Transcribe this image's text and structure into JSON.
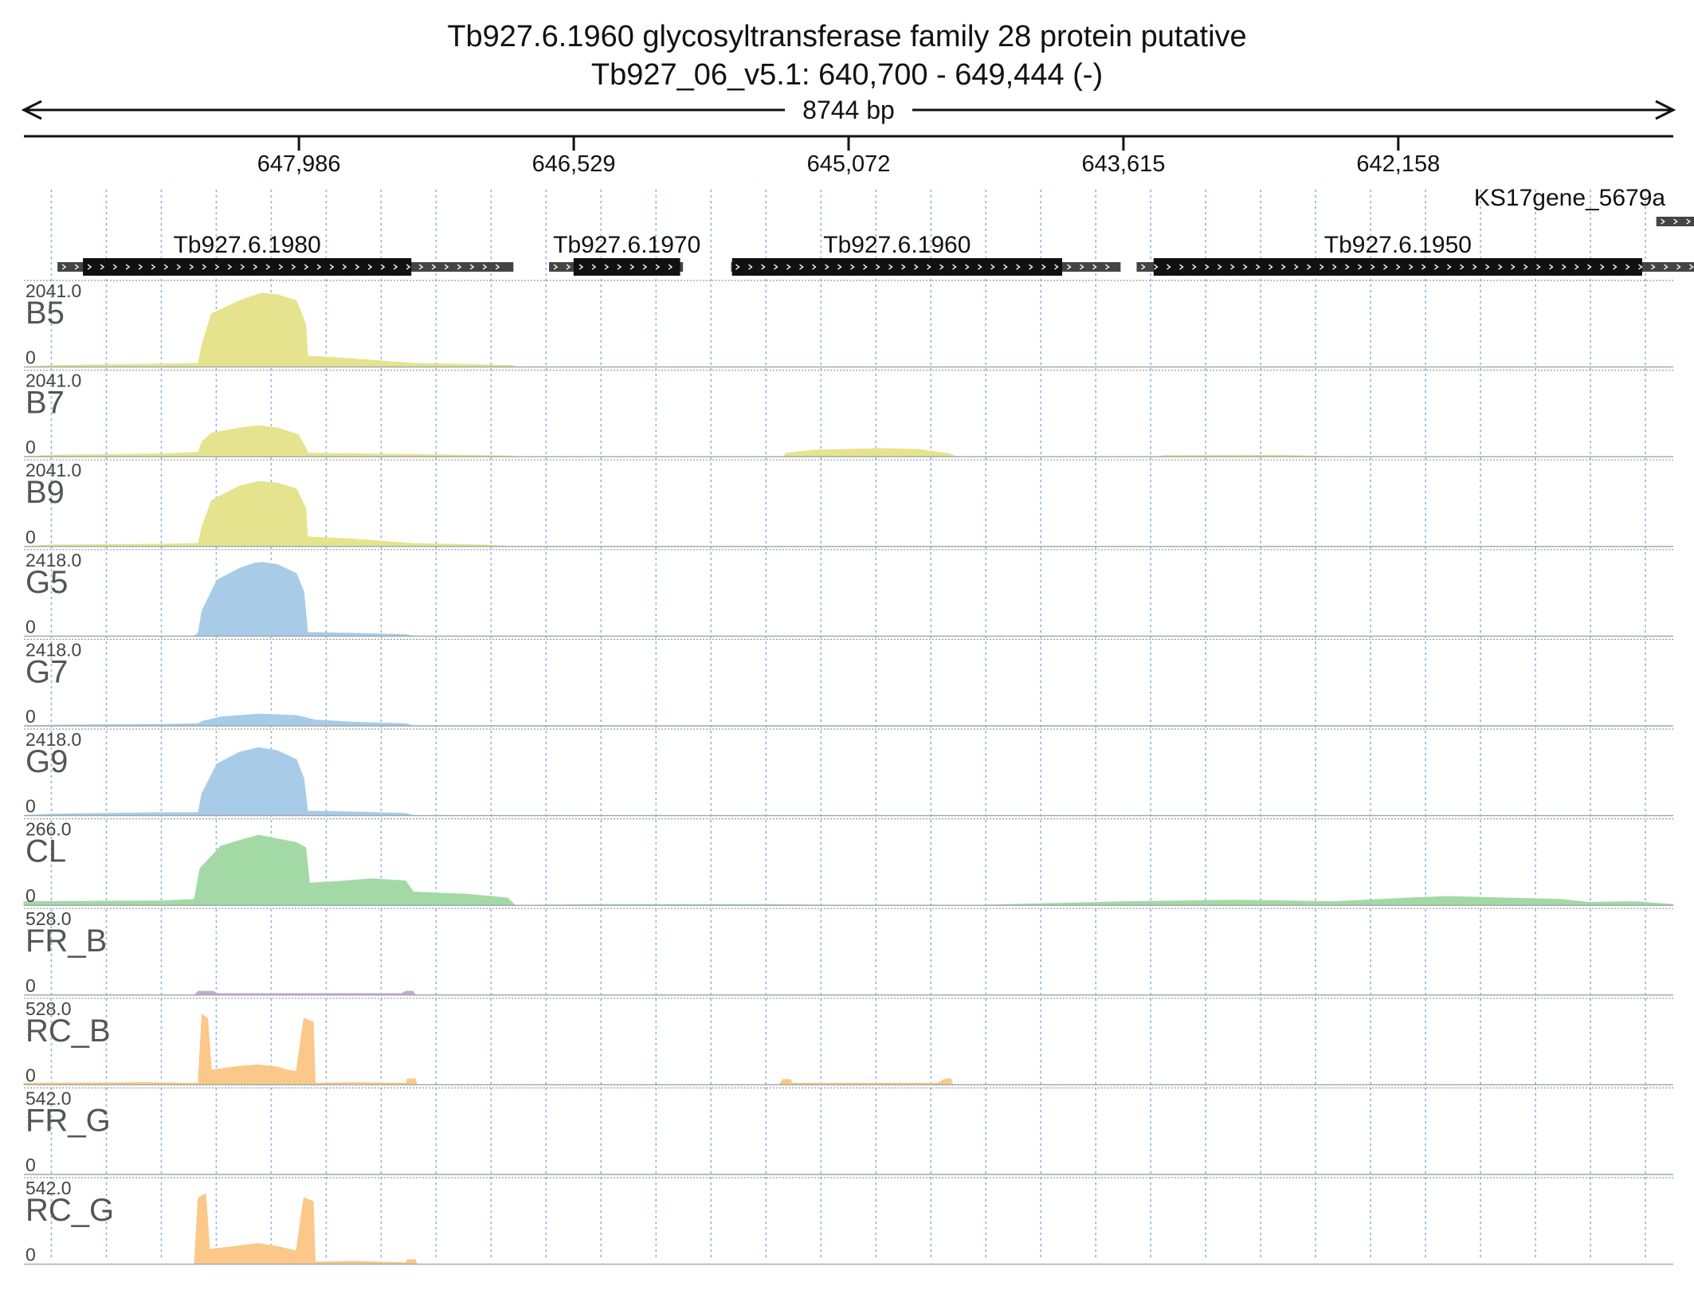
{
  "title": {
    "line1": "Tb927.6.1960  glycosyltransferase family 28 protein  putative",
    "line2": "Tb927_06_v5.1: 640,700 - 649,444 (-)"
  },
  "region": {
    "chrom": "Tb927_06_v5.1",
    "start": 640700,
    "end": 649444,
    "strand": "-",
    "span_label": "8744 bp"
  },
  "ruler": {
    "ticks": [
      {
        "pos": 647986,
        "label": "647,986"
      },
      {
        "pos": 646529,
        "label": "646,529"
      },
      {
        "pos": 645072,
        "label": "645,072"
      },
      {
        "pos": 643615,
        "label": "643,615"
      },
      {
        "pos": 642158,
        "label": "642,158"
      }
    ]
  },
  "genes": [
    {
      "name": "Tb927.6.1980",
      "start": 649266,
      "end": 646849,
      "cds_start": 649131,
      "cds_end": 647390,
      "row": 1
    },
    {
      "name": "Tb927.6.1970",
      "start": 646660,
      "end": 645950,
      "cds_start": 646530,
      "cds_end": 645965,
      "row": 1
    },
    {
      "name": "Tb927.6.1960",
      "start": 645695,
      "end": 643630,
      "cds_start": 645690,
      "cds_end": 643940,
      "row": 1
    },
    {
      "name": "Tb927.6.1950",
      "start": 643545,
      "end": 640230,
      "cds_start": 643455,
      "cds_end": 640865,
      "row": 1
    },
    {
      "name": "KS17gene_5679a",
      "start": 640790,
      "end": 640255,
      "cds_start": 640790,
      "cds_end": 640255,
      "row": 0
    }
  ],
  "tracks": [
    {
      "label": "B5",
      "max": "2041.0",
      "min": "0",
      "color": "#e6e38e",
      "profile": [
        [
          649444,
          0.0
        ],
        [
          649300,
          0.02
        ],
        [
          648700,
          0.04
        ],
        [
          648520,
          0.05
        ],
        [
          648500,
          0.3
        ],
        [
          648450,
          0.72
        ],
        [
          648300,
          0.9
        ],
        [
          648220,
          0.97
        ],
        [
          648180,
          1.0
        ],
        [
          648100,
          0.98
        ],
        [
          648000,
          0.9
        ],
        [
          647950,
          0.58
        ],
        [
          647940,
          0.15
        ],
        [
          647700,
          0.11
        ],
        [
          647380,
          0.05
        ],
        [
          647000,
          0.03
        ],
        [
          646850,
          0.02
        ],
        [
          646840,
          0.0
        ],
        [
          640700,
          0.0
        ]
      ]
    },
    {
      "label": "B7",
      "max": "2041.0",
      "min": "0",
      "color": "#e6e38e",
      "profile": [
        [
          649444,
          0.0
        ],
        [
          649300,
          0.02
        ],
        [
          648700,
          0.04
        ],
        [
          648520,
          0.06
        ],
        [
          648500,
          0.2
        ],
        [
          648450,
          0.32
        ],
        [
          648300,
          0.39
        ],
        [
          648200,
          0.42
        ],
        [
          648100,
          0.39
        ],
        [
          647990,
          0.3
        ],
        [
          647950,
          0.12
        ],
        [
          647940,
          0.05
        ],
        [
          647700,
          0.04
        ],
        [
          647380,
          0.03
        ],
        [
          647000,
          0.015
        ],
        [
          646850,
          0.01
        ],
        [
          646850,
          0.0
        ],
        [
          645420,
          0.0
        ],
        [
          645400,
          0.05
        ],
        [
          645250,
          0.09
        ],
        [
          644900,
          0.11
        ],
        [
          644700,
          0.1
        ],
        [
          644540,
          0.04
        ],
        [
          644500,
          0.0
        ],
        [
          643440,
          0.0
        ],
        [
          643400,
          0.015
        ],
        [
          642780,
          0.02
        ],
        [
          642450,
          0.0
        ],
        [
          640700,
          0.0
        ]
      ]
    },
    {
      "label": "B9",
      "max": "2041.0",
      "min": "0",
      "color": "#e6e38e",
      "profile": [
        [
          649444,
          0.0
        ],
        [
          649300,
          0.02
        ],
        [
          648700,
          0.03
        ],
        [
          648520,
          0.04
        ],
        [
          648500,
          0.26
        ],
        [
          648450,
          0.62
        ],
        [
          648300,
          0.82
        ],
        [
          648200,
          0.88
        ],
        [
          648100,
          0.86
        ],
        [
          648000,
          0.78
        ],
        [
          647950,
          0.52
        ],
        [
          647940,
          0.13
        ],
        [
          647700,
          0.1
        ],
        [
          647380,
          0.04
        ],
        [
          647000,
          0.02
        ],
        [
          646850,
          0.0
        ],
        [
          640700,
          0.0
        ]
      ]
    },
    {
      "label": "G5",
      "max": "2418.0",
      "min": "0",
      "color": "#a8cce8",
      "profile": [
        [
          649444,
          0.0
        ],
        [
          648540,
          0.0
        ],
        [
          648520,
          0.04
        ],
        [
          648500,
          0.34
        ],
        [
          648420,
          0.76
        ],
        [
          648300,
          0.92
        ],
        [
          648220,
          0.99
        ],
        [
          648180,
          1.0
        ],
        [
          648100,
          0.97
        ],
        [
          648000,
          0.85
        ],
        [
          647960,
          0.6
        ],
        [
          647940,
          0.05
        ],
        [
          647700,
          0.04
        ],
        [
          647420,
          0.02
        ],
        [
          647380,
          0.0
        ],
        [
          640700,
          0.0
        ]
      ]
    },
    {
      "label": "G7",
      "max": "2418.0",
      "min": "0",
      "color": "#a8cce8",
      "profile": [
        [
          649444,
          0.0
        ],
        [
          649300,
          0.01
        ],
        [
          648700,
          0.02
        ],
        [
          648520,
          0.03
        ],
        [
          648500,
          0.06
        ],
        [
          648400,
          0.12
        ],
        [
          648200,
          0.16
        ],
        [
          648000,
          0.14
        ],
        [
          647900,
          0.08
        ],
        [
          647700,
          0.05
        ],
        [
          647420,
          0.03
        ],
        [
          647380,
          0.0
        ],
        [
          640700,
          0.0
        ]
      ]
    },
    {
      "label": "G9",
      "max": "2418.0",
      "min": "0",
      "color": "#a8cce8",
      "profile": [
        [
          649444,
          0.0
        ],
        [
          649300,
          0.02
        ],
        [
          648700,
          0.04
        ],
        [
          648520,
          0.04
        ],
        [
          648500,
          0.3
        ],
        [
          648420,
          0.7
        ],
        [
          648300,
          0.86
        ],
        [
          648200,
          0.92
        ],
        [
          648100,
          0.88
        ],
        [
          648000,
          0.76
        ],
        [
          647960,
          0.5
        ],
        [
          647940,
          0.06
        ],
        [
          647700,
          0.05
        ],
        [
          647420,
          0.03
        ],
        [
          647380,
          0.0
        ],
        [
          640700,
          0.0
        ]
      ]
    },
    {
      "label": "CL",
      "max": "266.0",
      "min": "0",
      "color": "#a3d9a5",
      "profile": [
        [
          649444,
          0.05
        ],
        [
          648700,
          0.06
        ],
        [
          648540,
          0.08
        ],
        [
          648510,
          0.5
        ],
        [
          648400,
          0.8
        ],
        [
          648300,
          0.88
        ],
        [
          648200,
          0.95
        ],
        [
          648100,
          0.9
        ],
        [
          648000,
          0.85
        ],
        [
          647950,
          0.78
        ],
        [
          647930,
          0.3
        ],
        [
          647800,
          0.32
        ],
        [
          647600,
          0.36
        ],
        [
          647420,
          0.33
        ],
        [
          647380,
          0.18
        ],
        [
          647100,
          0.15
        ],
        [
          646880,
          0.1
        ],
        [
          646840,
          0.0
        ],
        [
          646400,
          0.01
        ],
        [
          646000,
          0.01
        ],
        [
          645500,
          0.01
        ],
        [
          645100,
          0.0
        ],
        [
          644400,
          0.0
        ],
        [
          643900,
          0.03
        ],
        [
          643600,
          0.05
        ],
        [
          643000,
          0.07
        ],
        [
          642500,
          0.05
        ],
        [
          642100,
          0.1
        ],
        [
          641900,
          0.12
        ],
        [
          641600,
          0.1
        ],
        [
          641300,
          0.08
        ],
        [
          641150,
          0.04
        ],
        [
          640900,
          0.05
        ],
        [
          640700,
          0.01
        ]
      ]
    },
    {
      "label": "FR_B",
      "max": "528.0",
      "min": "0",
      "color": "#c9a6cf",
      "profile": [
        [
          649444,
          0.0
        ],
        [
          648540,
          0.0
        ],
        [
          648520,
          0.05
        ],
        [
          648440,
          0.05
        ],
        [
          648420,
          0.02
        ],
        [
          647440,
          0.02
        ],
        [
          647420,
          0.05
        ],
        [
          647380,
          0.05
        ],
        [
          647370,
          0.0
        ],
        [
          640700,
          0.0
        ]
      ]
    },
    {
      "label": "RC_B",
      "max": "528.0",
      "min": "0",
      "color": "#fbc88a",
      "profile": [
        [
          649444,
          0.02
        ],
        [
          648800,
          0.03
        ],
        [
          648520,
          0.02
        ],
        [
          648500,
          0.95
        ],
        [
          648470,
          0.9
        ],
        [
          648450,
          0.2
        ],
        [
          648300,
          0.25
        ],
        [
          648200,
          0.27
        ],
        [
          648100,
          0.24
        ],
        [
          648050,
          0.2
        ],
        [
          648000,
          0.18
        ],
        [
          647960,
          0.9
        ],
        [
          647910,
          0.85
        ],
        [
          647900,
          0.02
        ],
        [
          647700,
          0.03
        ],
        [
          647420,
          0.02
        ],
        [
          647410,
          0.08
        ],
        [
          647370,
          0.08
        ],
        [
          647360,
          0.0
        ],
        [
          645440,
          0.0
        ],
        [
          645420,
          0.07
        ],
        [
          645380,
          0.07
        ],
        [
          645370,
          0.02
        ],
        [
          644600,
          0.02
        ],
        [
          644560,
          0.08
        ],
        [
          644530,
          0.08
        ],
        [
          644520,
          0.0
        ],
        [
          640700,
          0.0
        ]
      ]
    },
    {
      "label": "FR_G",
      "max": "542.0",
      "min": "0",
      "color": "#c9a6cf",
      "profile": [
        [
          649444,
          0.0
        ],
        [
          640700,
          0.0
        ]
      ]
    },
    {
      "label": "RC_G",
      "max": "542.0",
      "min": "0",
      "color": "#fbc88a",
      "profile": [
        [
          649444,
          0.0
        ],
        [
          648540,
          0.0
        ],
        [
          648520,
          0.9
        ],
        [
          648480,
          0.95
        ],
        [
          648460,
          0.2
        ],
        [
          648300,
          0.25
        ],
        [
          648200,
          0.28
        ],
        [
          648100,
          0.24
        ],
        [
          648000,
          0.18
        ],
        [
          647960,
          0.9
        ],
        [
          647910,
          0.85
        ],
        [
          647900,
          0.03
        ],
        [
          647700,
          0.04
        ],
        [
          647420,
          0.02
        ],
        [
          647410,
          0.06
        ],
        [
          647370,
          0.06
        ],
        [
          647360,
          0.0
        ],
        [
          640700,
          0.0
        ]
      ]
    }
  ]
}
